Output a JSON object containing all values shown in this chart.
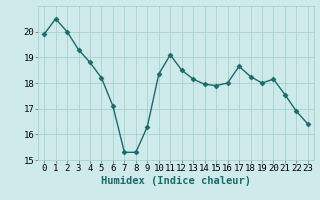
{
  "x": [
    0,
    1,
    2,
    3,
    4,
    5,
    6,
    7,
    8,
    9,
    10,
    11,
    12,
    13,
    14,
    15,
    16,
    17,
    18,
    19,
    20,
    21,
    22,
    23
  ],
  "y": [
    19.9,
    20.5,
    20.0,
    19.3,
    18.8,
    18.2,
    17.1,
    15.3,
    15.3,
    16.3,
    18.35,
    19.1,
    18.5,
    18.15,
    17.95,
    17.9,
    18.0,
    18.65,
    18.25,
    18.0,
    18.15,
    17.55,
    16.9,
    16.4
  ],
  "line_color": "#1a6b6b",
  "marker": "D",
  "marker_size": 2.5,
  "bg_color": "#ceeaea",
  "grid_color": "#a8d0d0",
  "xlabel": "Humidex (Indice chaleur)",
  "ylim": [
    15,
    21
  ],
  "xlim": [
    -0.5,
    23.5
  ],
  "yticks": [
    15,
    16,
    17,
    18,
    19,
    20
  ],
  "xticks": [
    0,
    1,
    2,
    3,
    4,
    5,
    6,
    7,
    8,
    9,
    10,
    11,
    12,
    13,
    14,
    15,
    16,
    17,
    18,
    19,
    20,
    21,
    22,
    23
  ],
  "xlabel_fontsize": 7.5,
  "tick_fontsize": 6.5,
  "line_width": 1.0
}
